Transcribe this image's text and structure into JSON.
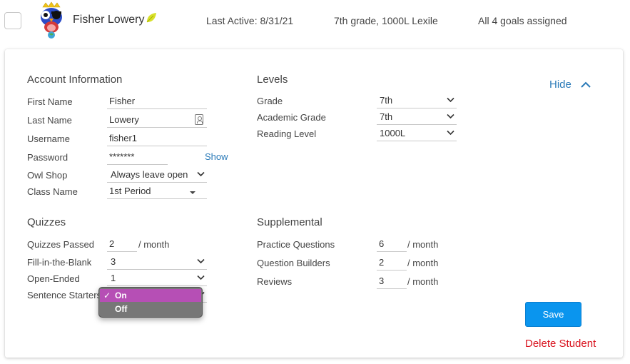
{
  "header": {
    "student_name": "Fisher Lowery",
    "last_active": "Last Active: 8/31/21",
    "grade_lexile": "7th grade, 1000L Lexile",
    "goals": "All 4 goals assigned"
  },
  "account": {
    "title": "Account Information",
    "first_name": {
      "label": "First Name",
      "value": "Fisher"
    },
    "last_name": {
      "label": "Last Name",
      "value": "Lowery"
    },
    "username": {
      "label": "Username",
      "value": "fisher1"
    },
    "password": {
      "label": "Password",
      "value": "*******",
      "show_label": "Show"
    },
    "owl_shop": {
      "label": "Owl Shop",
      "value": "Always leave open"
    },
    "class_name": {
      "label": "Class Name",
      "value": "1st Period"
    }
  },
  "levels": {
    "title": "Levels",
    "grade": {
      "label": "Grade",
      "value": "7th"
    },
    "academic_grade": {
      "label": "Academic Grade",
      "value": "7th"
    },
    "reading_level": {
      "label": "Reading Level",
      "value": "1000L"
    }
  },
  "quizzes": {
    "title": "Quizzes",
    "passed": {
      "label": "Quizzes Passed",
      "value": "2",
      "unit": "/ month"
    },
    "fill_blank": {
      "label": "Fill-in-the-Blank",
      "value": "3"
    },
    "open_ended": {
      "label": "Open-Ended",
      "value": "1"
    },
    "sentence_starters": {
      "label": "Sentence Starters"
    }
  },
  "supplemental": {
    "title": "Supplemental",
    "practice": {
      "label": "Practice Questions",
      "value": "6",
      "unit": "/ month"
    },
    "builders": {
      "label": "Question Builders",
      "value": "2",
      "unit": "/ month"
    },
    "reviews": {
      "label": "Reviews",
      "value": "3",
      "unit": "/ month"
    }
  },
  "actions": {
    "hide_label": "Hide",
    "save_label": "Save",
    "delete_label": "Delete Student"
  },
  "dropdown": {
    "check": "✓",
    "options": [
      "On",
      "Off"
    ],
    "selected": "On"
  },
  "colors": {
    "link": "#2a7ab8",
    "save_button": "#0a95ee",
    "delete": "#d9131e",
    "selected_option": "#b64fb5",
    "leaf": "#d8e02a"
  }
}
